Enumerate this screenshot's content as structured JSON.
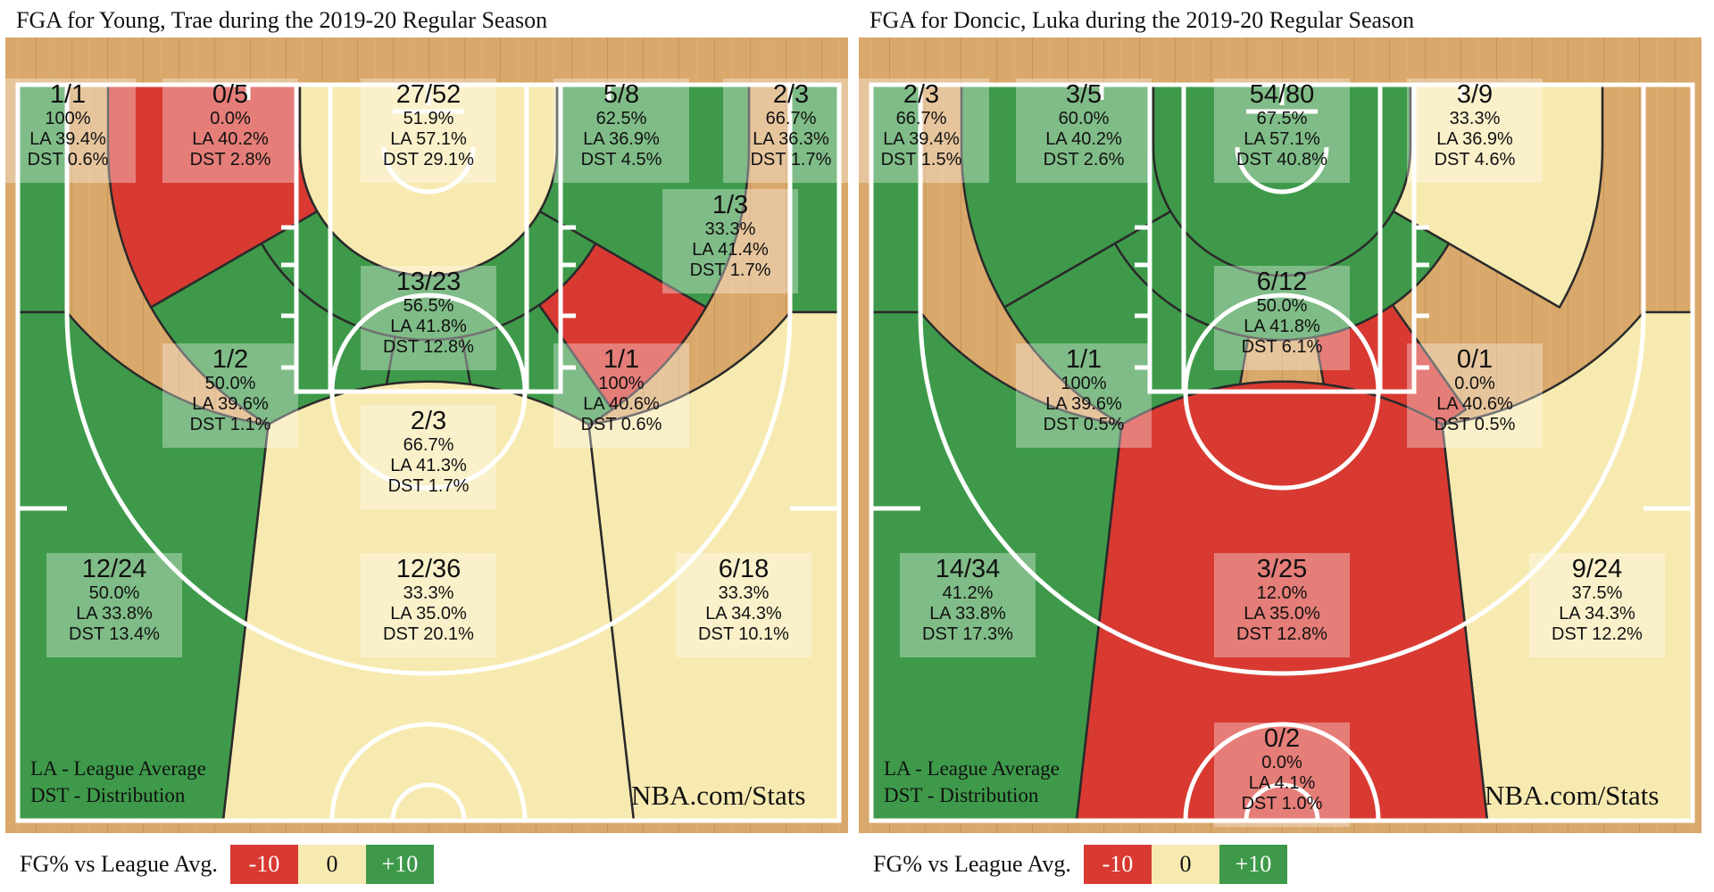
{
  "colors": {
    "below": "#d83a32",
    "near": "#f7eab0",
    "above": "#3e9a4a",
    "floor": "#d9a86b",
    "lines": "#ffffff"
  },
  "chart_data": [
    {
      "type": "shot-chart",
      "title": "FGA for Young, Trae during the 2019-20 Regular Season",
      "zones": [
        {
          "id": "left-corner-three",
          "fg": "1/1",
          "pct": "100%",
          "la": "LA 39.4%",
          "dst": "DST 0.6%",
          "rating": "above"
        },
        {
          "id": "left-baseline-mid",
          "fg": "0/5",
          "pct": "0.0%",
          "la": "LA 40.2%",
          "dst": "DST 2.8%",
          "rating": "below"
        },
        {
          "id": "restricted-area",
          "fg": "27/52",
          "pct": "51.9%",
          "la": "LA 57.1%",
          "dst": "DST 29.1%",
          "rating": "near"
        },
        {
          "id": "right-baseline-mid",
          "fg": "5/8",
          "pct": "62.5%",
          "la": "LA 36.9%",
          "dst": "DST 4.5%",
          "rating": "above"
        },
        {
          "id": "right-corner-three",
          "fg": "2/3",
          "pct": "66.7%",
          "la": "LA 36.3%",
          "dst": "DST 1.7%",
          "rating": "above"
        },
        {
          "id": "right-elbow-mid",
          "fg": "1/3",
          "pct": "33.3%",
          "la": "LA 41.4%",
          "dst": "DST 1.7%",
          "rating": "below"
        },
        {
          "id": "paint-non-ra",
          "fg": "13/23",
          "pct": "56.5%",
          "la": "LA 41.8%",
          "dst": "DST 12.8%",
          "rating": "above"
        },
        {
          "id": "left-wing-mid",
          "fg": "1/2",
          "pct": "50.0%",
          "la": "LA 39.6%",
          "dst": "DST 1.1%",
          "rating": "above"
        },
        {
          "id": "right-wing-mid",
          "fg": "1/1",
          "pct": "100%",
          "la": "LA 40.6%",
          "dst": "DST 0.6%",
          "rating": "above"
        },
        {
          "id": "top-key-mid",
          "fg": "2/3",
          "pct": "66.7%",
          "la": "LA 41.3%",
          "dst": "DST 1.7%",
          "rating": "above"
        },
        {
          "id": "left-wing-three",
          "fg": "12/24",
          "pct": "50.0%",
          "la": "LA 33.8%",
          "dst": "DST 13.4%",
          "rating": "above"
        },
        {
          "id": "top-three",
          "fg": "12/36",
          "pct": "33.3%",
          "la": "LA 35.0%",
          "dst": "DST 20.1%",
          "rating": "near"
        },
        {
          "id": "right-wing-three",
          "fg": "6/18",
          "pct": "33.3%",
          "la": "LA 34.3%",
          "dst": "DST 10.1%",
          "rating": "near"
        }
      ]
    },
    {
      "type": "shot-chart",
      "title": "FGA for Doncic, Luka during the 2019-20 Regular Season",
      "zones": [
        {
          "id": "left-corner-three",
          "fg": "2/3",
          "pct": "66.7%",
          "la": "LA 39.4%",
          "dst": "DST 1.5%",
          "rating": "above"
        },
        {
          "id": "left-baseline-mid",
          "fg": "3/5",
          "pct": "60.0%",
          "la": "LA 40.2%",
          "dst": "DST 2.6%",
          "rating": "above"
        },
        {
          "id": "restricted-area",
          "fg": "54/80",
          "pct": "67.5%",
          "la": "LA 57.1%",
          "dst": "DST 40.8%",
          "rating": "above"
        },
        {
          "id": "right-baseline-mid",
          "fg": "3/9",
          "pct": "33.3%",
          "la": "LA 36.9%",
          "dst": "DST 4.6%",
          "rating": "near"
        },
        {
          "id": "paint-non-ra",
          "fg": "6/12",
          "pct": "50.0%",
          "la": "LA 41.8%",
          "dst": "DST 6.1%",
          "rating": "above"
        },
        {
          "id": "left-wing-mid",
          "fg": "1/1",
          "pct": "100%",
          "la": "LA 39.6%",
          "dst": "DST 0.5%",
          "rating": "above"
        },
        {
          "id": "right-wing-mid",
          "fg": "0/1",
          "pct": "0.0%",
          "la": "LA 40.6%",
          "dst": "DST 0.5%",
          "rating": "below"
        },
        {
          "id": "left-wing-three",
          "fg": "14/34",
          "pct": "41.2%",
          "la": "LA 33.8%",
          "dst": "DST 17.3%",
          "rating": "above"
        },
        {
          "id": "top-three",
          "fg": "3/25",
          "pct": "12.0%",
          "la": "LA 35.0%",
          "dst": "DST 12.8%",
          "rating": "below"
        },
        {
          "id": "right-wing-three",
          "fg": "9/24",
          "pct": "37.5%",
          "la": "LA 34.3%",
          "dst": "DST 12.2%",
          "rating": "near"
        },
        {
          "id": "backcourt",
          "fg": "0/2",
          "pct": "0.0%",
          "la": "LA 4.1%",
          "dst": "DST 1.0%",
          "rating": "below"
        }
      ]
    }
  ],
  "legend_note": {
    "line1": "LA - League Average",
    "line2": "DST - Distribution"
  },
  "watermark": "NBA.com/Stats",
  "scale": {
    "label": "FG% vs League Avg.",
    "low": "-10",
    "mid": "0",
    "high": "+10"
  }
}
